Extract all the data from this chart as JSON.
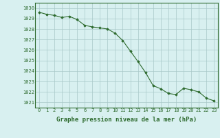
{
  "x": [
    0,
    1,
    2,
    3,
    4,
    5,
    6,
    7,
    8,
    9,
    10,
    11,
    12,
    13,
    14,
    15,
    16,
    17,
    18,
    19,
    20,
    21,
    22,
    23
  ],
  "y": [
    1029.6,
    1029.4,
    1029.3,
    1029.1,
    1029.2,
    1028.9,
    1028.35,
    1028.2,
    1028.1,
    1028.0,
    1027.6,
    1026.9,
    1025.9,
    1024.9,
    1023.85,
    1022.6,
    1022.3,
    1021.85,
    1021.75,
    1022.35,
    1022.2,
    1022.0,
    1021.4,
    1021.15
  ],
  "line_color": "#2d6a2d",
  "marker": "D",
  "marker_size": 1.8,
  "bg_color": "#d8f0f0",
  "grid_color": "#a8c8c8",
  "axis_label_color": "#2d6a2d",
  "tick_label_color": "#2d6a2d",
  "xlabel": "Graphe pression niveau de la mer (hPa)",
  "xlabel_fontsize": 6.5,
  "xlabel_fontweight": "bold",
  "ytick_labels": [
    "1021",
    "1022",
    "1023",
    "1024",
    "1025",
    "1026",
    "1027",
    "1028",
    "1029",
    "1030"
  ],
  "ylim": [
    1020.5,
    1030.5
  ],
  "yticks": [
    1021,
    1022,
    1023,
    1024,
    1025,
    1026,
    1027,
    1028,
    1029,
    1030
  ],
  "xlim": [
    -0.5,
    23.5
  ],
  "xticks": [
    0,
    1,
    2,
    3,
    4,
    5,
    6,
    7,
    8,
    9,
    10,
    11,
    12,
    13,
    14,
    15,
    16,
    17,
    18,
    19,
    20,
    21,
    22,
    23
  ],
  "xtick_labels": [
    "0",
    "1",
    "2",
    "3",
    "4",
    "5",
    "6",
    "7",
    "8",
    "9",
    "10",
    "11",
    "12",
    "13",
    "14",
    "15",
    "16",
    "17",
    "18",
    "19",
    "20",
    "21",
    "22",
    "23"
  ],
  "tick_fontsize": 5.0,
  "linewidth": 0.8,
  "border_color": "#2d6a2d"
}
